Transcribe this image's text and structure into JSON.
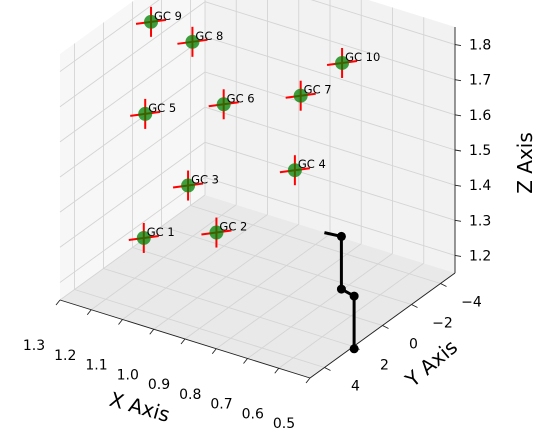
{
  "chart_data": {
    "type": "scatter",
    "title": "",
    "axes": {
      "x": {
        "label": "X Axis",
        "range": [
          1.3,
          0.5
        ],
        "ticks": [
          "1.3",
          "1.2",
          "1.1",
          "1.0",
          "0.9",
          "0.8",
          "0.7",
          "0.6",
          "0.5"
        ]
      },
      "y": {
        "label": "Y Axis",
        "range": [
          -5,
          5
        ],
        "ticks": [
          "−4",
          "−2",
          "0",
          "2",
          "4"
        ]
      },
      "z": {
        "label": "Z Axis",
        "range": [
          1.15,
          1.85
        ],
        "ticks": [
          "1.2",
          "1.3",
          "1.4",
          "1.5",
          "1.6",
          "1.7",
          "1.8"
        ]
      }
    },
    "grid": true,
    "colors": {
      "point": "#008000",
      "cross": "#ff0000",
      "trajectory": "#000000"
    },
    "series": [
      {
        "kind": "points",
        "points": [
          {
            "label": "GC 1",
            "x": 1.25,
            "y": 0.3,
            "z": 1.2
          },
          {
            "label": "GC 2",
            "x": 1.05,
            "y": -0.4,
            "z": 1.25
          },
          {
            "label": "GC 3",
            "x": 1.15,
            "y": -0.6,
            "z": 1.35
          },
          {
            "label": "GC 4",
            "x": 0.85,
            "y": -1.5,
            "z": 1.45
          },
          {
            "label": "GC 5",
            "x": 1.25,
            "y": 0.2,
            "z": 1.55
          },
          {
            "label": "GC 6",
            "x": 1.05,
            "y": -0.9,
            "z": 1.6
          },
          {
            "label": "GC 7",
            "x": 0.85,
            "y": -1.9,
            "z": 1.65
          },
          {
            "label": "GC 8",
            "x": 1.15,
            "y": -0.9,
            "z": 1.75
          },
          {
            "label": "GC 9",
            "x": 1.25,
            "y": -0.2,
            "z": 1.8
          },
          {
            "label": "GC 10",
            "x": 0.75,
            "y": -2.6,
            "z": 1.75
          }
        ]
      },
      {
        "kind": "trajectory",
        "points": [
          {
            "x": 0.7,
            "y": -0.3,
            "z": 1.35
          },
          {
            "x": 0.65,
            "y": -0.4,
            "z": 1.35
          },
          {
            "x": 0.65,
            "y": -0.4,
            "z": 1.2
          },
          {
            "x": 0.6,
            "y": -0.2,
            "z": 1.2
          },
          {
            "x": 0.6,
            "y": -0.2,
            "z": 1.05
          }
        ]
      }
    ]
  }
}
